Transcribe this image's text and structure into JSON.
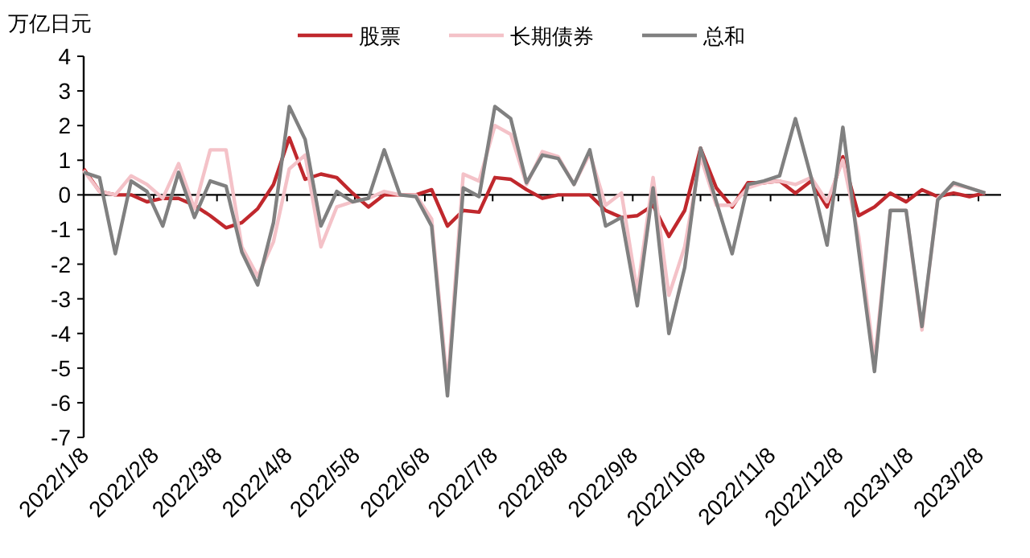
{
  "chart_data": {
    "type": "line",
    "ylabel": "万亿日元",
    "legend": "top",
    "line_style": "solid",
    "marker": "none",
    "x": [
      "2022-01-08",
      "2022-01-15",
      "2022-01-22",
      "2022-01-29",
      "2022-02-05",
      "2022-02-12",
      "2022-02-19",
      "2022-02-26",
      "2022-03-05",
      "2022-03-12",
      "2022-03-19",
      "2022-03-26",
      "2022-04-02",
      "2022-04-09",
      "2022-04-16",
      "2022-04-23",
      "2022-04-30",
      "2022-05-07",
      "2022-05-14",
      "2022-05-21",
      "2022-05-28",
      "2022-06-04",
      "2022-06-11",
      "2022-06-18",
      "2022-06-25",
      "2022-07-02",
      "2022-07-09",
      "2022-07-16",
      "2022-07-23",
      "2022-07-30",
      "2022-08-06",
      "2022-08-13",
      "2022-08-20",
      "2022-08-27",
      "2022-09-03",
      "2022-09-10",
      "2022-09-17",
      "2022-09-24",
      "2022-10-01",
      "2022-10-08",
      "2022-10-15",
      "2022-10-22",
      "2022-10-29",
      "2022-11-05",
      "2022-11-12",
      "2022-11-19",
      "2022-11-26",
      "2022-12-03",
      "2022-12-10",
      "2022-12-17",
      "2022-12-24",
      "2022-12-31",
      "2023-01-07",
      "2023-01-14",
      "2023-01-21",
      "2023-01-28",
      "2023-02-04",
      "2023-02-11"
    ],
    "series": [
      {
        "name": "股票",
        "color": "#c0282d",
        "values": [
          0.75,
          0.1,
          0,
          0,
          -0.2,
          -0.1,
          -0.1,
          -0.3,
          -0.6,
          -0.95,
          -0.8,
          -0.4,
          0.3,
          1.65,
          0.45,
          0.6,
          0.5,
          0.05,
          -0.35,
          0,
          0,
          0,
          0.15,
          -0.9,
          -0.45,
          -0.5,
          0.5,
          0.45,
          0.15,
          -0.1,
          0,
          0,
          0,
          -0.45,
          -0.65,
          -0.6,
          -0.3,
          -1.2,
          -0.45,
          1.35,
          0.2,
          -0.35,
          0.35,
          0.35,
          0.4,
          0.05,
          0.4,
          -0.35,
          1.1,
          -0.6,
          -0.35,
          0.05,
          -0.2,
          0.15,
          -0.05,
          0.05,
          -0.05,
          0.05
        ]
      },
      {
        "name": "长期债券",
        "color": "#f4c2c8",
        "values": [
          0.7,
          0.1,
          0,
          0.55,
          0.3,
          -0.1,
          0.9,
          -0.4,
          1.3,
          1.3,
          -1.5,
          -2.35,
          -1.35,
          0.75,
          1.15,
          -1.5,
          -0.35,
          -0.2,
          -0.1,
          0.1,
          0,
          0,
          -0.7,
          -5.5,
          0.6,
          0.4,
          2.0,
          1.75,
          0.3,
          1.25,
          1.1,
          0.3,
          1.2,
          -0.3,
          0.05,
          -2.8,
          0.5,
          -2.9,
          -1.5,
          1.1,
          -0.3,
          -0.3,
          0.2,
          0.35,
          0.4,
          0.3,
          0.5,
          -0.2,
          1.0,
          -1.2,
          -4.8,
          -0.45,
          -0.45,
          -3.9,
          -0.1,
          0.3,
          0.2,
          0.05
        ]
      },
      {
        "name": "总和",
        "color": "#808080",
        "values": [
          0.65,
          0.5,
          -1.7,
          0.4,
          0.1,
          -0.9,
          0.65,
          -0.65,
          0.4,
          0.25,
          -1.65,
          -2.6,
          -0.8,
          2.55,
          1.6,
          -0.9,
          0.1,
          -0.2,
          -0.1,
          1.3,
          0,
          -0.05,
          -0.9,
          -5.8,
          0.2,
          -0.05,
          2.55,
          2.2,
          0.35,
          1.15,
          1.05,
          0.3,
          1.3,
          -0.9,
          -0.65,
          -3.2,
          0.2,
          -4.0,
          -2.1,
          1.35,
          -0.2,
          -1.7,
          0.3,
          0.4,
          0.55,
          2.2,
          0.5,
          -1.45,
          1.95,
          -1.6,
          -5.1,
          -0.45,
          -0.45,
          -3.8,
          -0.15,
          0.35,
          0.2,
          0.05
        ]
      }
    ],
    "xlim": [
      "2022-01-08",
      "2023-02-18"
    ],
    "xticks": [
      {
        "value": "2022-01-08",
        "label": "2022/1/8"
      },
      {
        "value": "2022-02-08",
        "label": "2022/2/8"
      },
      {
        "value": "2022-03-08",
        "label": "2022/3/8"
      },
      {
        "value": "2022-04-08",
        "label": "2022/4/8"
      },
      {
        "value": "2022-05-08",
        "label": "2022/5/8"
      },
      {
        "value": "2022-06-08",
        "label": "2022/6/8"
      },
      {
        "value": "2022-07-08",
        "label": "2022/7/8"
      },
      {
        "value": "2022-08-08",
        "label": "2022/8/8"
      },
      {
        "value": "2022-09-08",
        "label": "2022/9/8"
      },
      {
        "value": "2022-10-08",
        "label": "2022/10/8"
      },
      {
        "value": "2022-11-08",
        "label": "2022/11/8"
      },
      {
        "value": "2022-12-08",
        "label": "2022/12/8"
      },
      {
        "value": "2023-01-08",
        "label": "2023/1/8"
      },
      {
        "value": "2023-02-08",
        "label": "2023/2/8"
      }
    ],
    "ylim": [
      -7,
      4
    ],
    "yticks": [
      -7,
      -6,
      -5,
      -4,
      -3,
      -2,
      -1,
      0,
      1,
      2,
      3,
      4
    ]
  }
}
